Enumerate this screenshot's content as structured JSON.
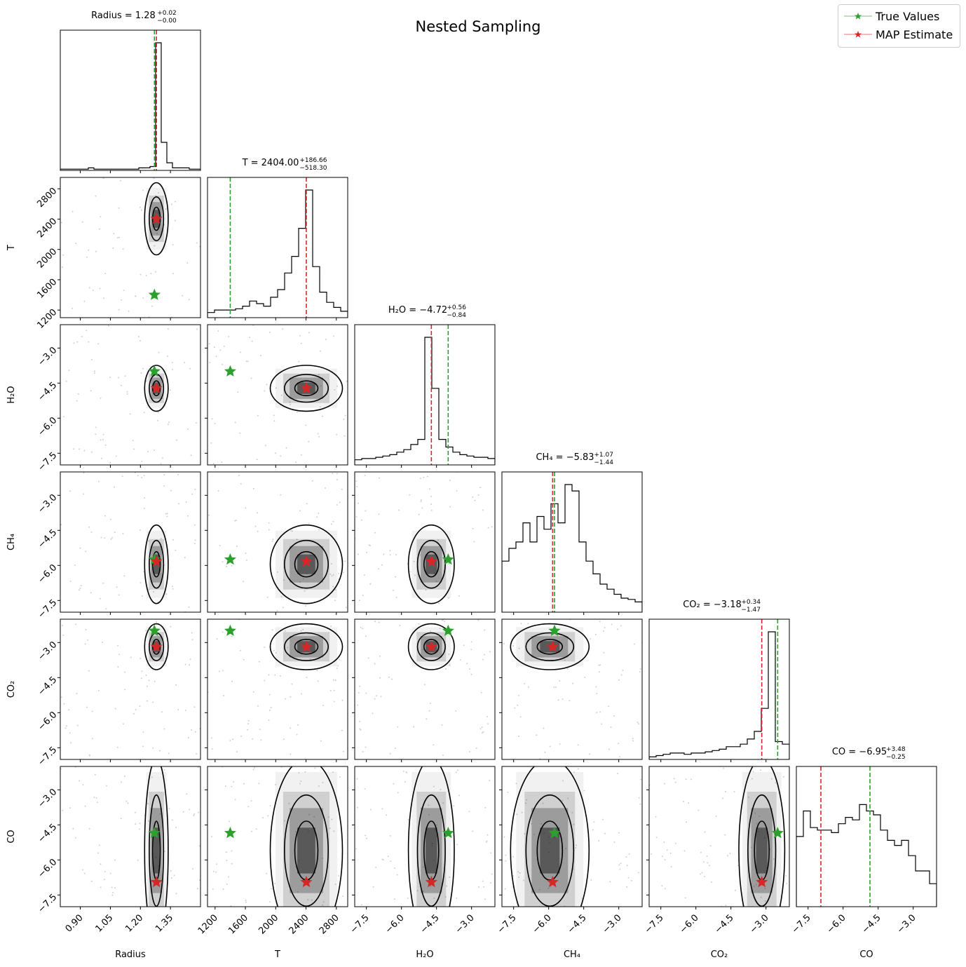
{
  "suptitle": "Nested Sampling",
  "legend": {
    "true_label": "True Values",
    "map_label": "MAP Estimate",
    "true_color": "#2ca02c",
    "map_color": "#d62728"
  },
  "chart_data": {
    "type": "corner",
    "title": "Nested Sampling",
    "parameters": [
      {
        "name": "Radius",
        "label": "Radius",
        "range": [
          0.8,
          1.5
        ],
        "ticks": [
          0.9,
          1.05,
          1.2,
          1.35
        ],
        "tick_labels": [
          "0.90",
          "1.05",
          "1.20",
          "1.35"
        ],
        "true_value": 1.27,
        "map_value": 1.28,
        "title_main": "Radius = 1.28",
        "title_plus": "+0.02",
        "title_minus": "−0.00",
        "hist_values": [
          0.01,
          0.01,
          0.01,
          0.01,
          0.01,
          0.02,
          0.01,
          0.01,
          0.01,
          0.01,
          0.01,
          0.01,
          0.01,
          0.01,
          0.02,
          0.02,
          0.03,
          1.0,
          0.22,
          0.06,
          0.02,
          0.02,
          0.02,
          0.01,
          0.01
        ]
      },
      {
        "name": "T",
        "label": "T",
        "range": [
          1100,
          2950
        ],
        "ticks": [
          1200,
          1600,
          2000,
          2400,
          2800
        ],
        "tick_labels": [
          "1200",
          "1600",
          "2000",
          "2400",
          "2800"
        ],
        "true_value": 1400,
        "map_value": 2404,
        "title_main": "T = 2404.00",
        "title_plus": "+186.66",
        "title_minus": "−518.30",
        "hist_values": [
          0.04,
          0.06,
          0.06,
          0.06,
          0.07,
          0.09,
          0.13,
          0.11,
          0.09,
          0.16,
          0.22,
          0.35,
          0.48,
          0.7,
          1.0,
          0.4,
          0.2,
          0.12,
          0.08,
          0.05
        ]
      },
      {
        "name": "H2O",
        "label": "H₂O",
        "range": [
          -8.0,
          -2.0
        ],
        "ticks": [
          -7.5,
          -6.0,
          -4.5,
          -3.0
        ],
        "tick_labels": [
          "−7.5",
          "−6.0",
          "−4.5",
          "−3.0"
        ],
        "true_value": -4.0,
        "map_value": -4.72,
        "title_main": "H₂O = −4.72",
        "title_plus": "+0.56",
        "title_minus": "−0.84",
        "hist_values": [
          0.04,
          0.05,
          0.05,
          0.06,
          0.07,
          0.08,
          0.1,
          0.12,
          0.16,
          0.2,
          1.0,
          0.6,
          0.2,
          0.14,
          0.1,
          0.08,
          0.07,
          0.06,
          0.06,
          0.05
        ]
      },
      {
        "name": "CH4",
        "label": "CH₄",
        "range": [
          -8.0,
          -2.0
        ],
        "ticks": [
          -7.5,
          -6.0,
          -4.5,
          -3.0
        ],
        "tick_labels": [
          "−7.5",
          "−6.0",
          "−4.5",
          "−3.0"
        ],
        "true_value": -5.75,
        "map_value": -5.83,
        "title_main": "CH₄ = −5.83",
        "title_plus": "+1.07",
        "title_minus": "−1.44",
        "hist_values": [
          0.4,
          0.5,
          0.55,
          0.7,
          0.55,
          0.75,
          0.65,
          0.85,
          0.7,
          1.0,
          0.95,
          0.55,
          0.4,
          0.3,
          0.22,
          0.18,
          0.14,
          0.11,
          0.1,
          0.08
        ]
      },
      {
        "name": "CO2",
        "label": "CO₂",
        "range": [
          -8.0,
          -2.0
        ],
        "ticks": [
          -7.5,
          -6.0,
          -4.5,
          -3.0
        ],
        "tick_labels": [
          "−7.5",
          "−6.0",
          "−4.5",
          "−3.0"
        ],
        "true_value": -2.5,
        "map_value": -3.18,
        "title_main": "CO₂ = −3.18",
        "title_plus": "+0.34",
        "title_minus": "−1.47",
        "hist_values": [
          0.02,
          0.03,
          0.04,
          0.05,
          0.05,
          0.04,
          0.05,
          0.05,
          0.06,
          0.07,
          0.08,
          0.1,
          0.1,
          0.12,
          0.16,
          0.22,
          0.4,
          1.0,
          0.14,
          0.12
        ]
      },
      {
        "name": "CO",
        "label": "CO",
        "range": [
          -8.0,
          -2.0
        ],
        "ticks": [
          -7.5,
          -6.0,
          -4.5,
          -3.0
        ],
        "tick_labels": [
          "−7.5",
          "−6.0",
          "−4.5",
          "−3.0"
        ],
        "true_value": -4.85,
        "map_value": -6.95,
        "title_main": "CO = −6.95",
        "title_plus": "+3.48",
        "title_minus": "−0.25",
        "hist_values": [
          0.55,
          0.75,
          0.62,
          0.6,
          0.6,
          0.58,
          0.65,
          0.7,
          0.68,
          0.8,
          0.75,
          0.72,
          0.6,
          0.52,
          0.48,
          0.52,
          0.4,
          0.28,
          0.28,
          0.18
        ]
      }
    ]
  }
}
